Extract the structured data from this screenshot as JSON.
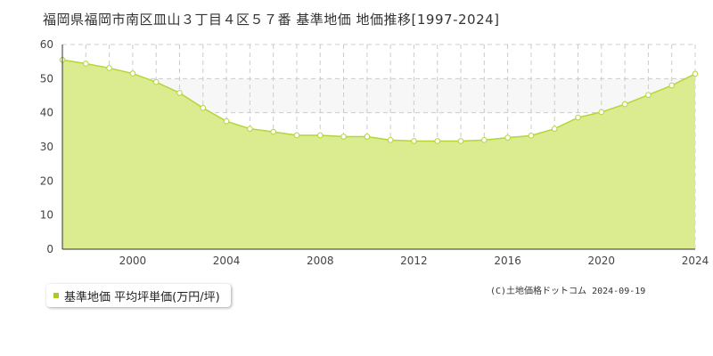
{
  "title": "福岡県福岡市南区皿山３丁目４区５７番 基準地価 地価推移[1997-2024]",
  "legend": {
    "label": "基準地価 平均坪単価(万円/坪)"
  },
  "copyright": "(C)土地価格ドットコム 2024-09-19",
  "colors": {
    "fill": "#dbeb90",
    "line": "#b5d53a",
    "marker_face": "#ffffff",
    "band": "#f7f7f7",
    "grid": "#cccccc"
  },
  "chart_data": {
    "type": "area",
    "x": [
      1997,
      1998,
      1999,
      2000,
      2001,
      2002,
      2003,
      2004,
      2005,
      2006,
      2007,
      2008,
      2009,
      2010,
      2011,
      2012,
      2013,
      2014,
      2015,
      2016,
      2017,
      2018,
      2019,
      2020,
      2021,
      2022,
      2023,
      2024
    ],
    "series": [
      {
        "name": "基準地価 平均坪単価(万円/坪)",
        "values": [
          55.5,
          54.4,
          53.1,
          51.5,
          49.0,
          45.8,
          41.4,
          37.5,
          35.3,
          34.4,
          33.4,
          33.4,
          33.0,
          33.0,
          32.0,
          31.7,
          31.7,
          31.7,
          32.0,
          32.7,
          33.3,
          35.3,
          38.6,
          40.2,
          42.5,
          45.2,
          48.0,
          51.4
        ]
      }
    ],
    "xlim": [
      1997,
      2024
    ],
    "ylim": [
      0,
      60
    ],
    "xticks": [
      2000,
      2004,
      2008,
      2012,
      2016,
      2020,
      2024
    ],
    "yticks": [
      0,
      10,
      20,
      30,
      40,
      50,
      60
    ],
    "xtick_labels": [
      "2000",
      "2004",
      "2008",
      "2012",
      "2016",
      "2020",
      "2024"
    ],
    "ytick_labels": [
      "0",
      "10",
      "20",
      "30",
      "40",
      "50",
      "60"
    ],
    "shaded_band": [
      40,
      50
    ],
    "grid": true
  }
}
